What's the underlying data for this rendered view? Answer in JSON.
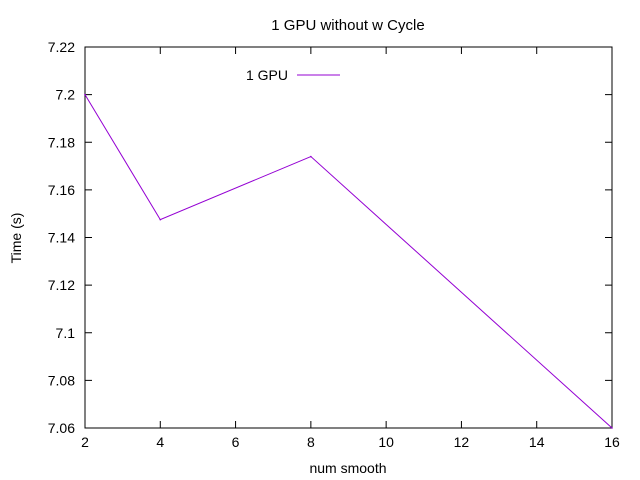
{
  "chart_data": {
    "type": "line",
    "title": "1 GPU without w Cycle",
    "xlabel": "num smooth",
    "ylabel": "Time (s)",
    "xlim": [
      2,
      16
    ],
    "ylim": [
      7.06,
      7.22
    ],
    "xticks": [
      2,
      4,
      6,
      8,
      10,
      12,
      14,
      16
    ],
    "yticks": [
      7.06,
      7.08,
      7.1,
      7.12,
      7.14,
      7.16,
      7.18,
      7.2,
      7.22
    ],
    "xtick_labels": [
      "2",
      "4",
      "6",
      "8",
      "10",
      "12",
      "14",
      "16"
    ],
    "ytick_labels": [
      "7.06",
      "7.08",
      "7.1",
      "7.12",
      "7.14",
      "7.16",
      "7.18",
      "7.2",
      "7.22"
    ],
    "grid": false,
    "legend_position": "top-left",
    "series": [
      {
        "name": "1 GPU",
        "color": "#9400d3",
        "x": [
          2,
          4,
          8,
          16
        ],
        "y": [
          7.2,
          7.1475,
          7.174,
          7.06
        ]
      }
    ]
  }
}
